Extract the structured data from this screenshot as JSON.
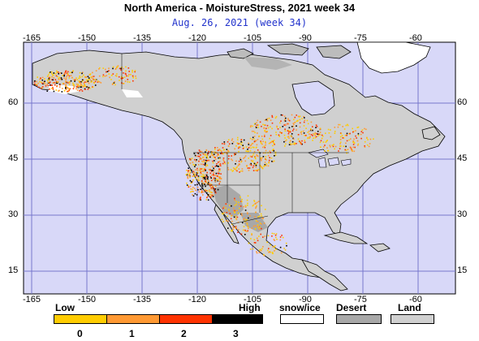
{
  "title": "North America - MoistureStress, 2021 week 34",
  "subtitle": "Aug. 26, 2021 (week 34)",
  "map": {
    "lon_ticks": [
      "-165",
      "-150",
      "-135",
      "-120",
      "-105",
      "-90",
      "-75",
      "-60"
    ],
    "lat_ticks": [
      "60",
      "45",
      "30",
      "15"
    ],
    "colors": {
      "ocean": "#d8d8f8",
      "land": "#d0d0d0",
      "desert": "#a8a8a8",
      "snow_ice": "#ffffff",
      "stress_low": "#ffcc00",
      "stress_1": "#ff9933",
      "stress_2": "#ff3300",
      "stress_high": "#000000",
      "grid": "#6666cc"
    }
  },
  "legend": {
    "low_label": "Low",
    "high_label": "High",
    "scale_numbers": [
      "0",
      "1",
      "2",
      "3"
    ],
    "snow_label": "snow/ice",
    "desert_label": "Desert",
    "land_label": "Land"
  }
}
